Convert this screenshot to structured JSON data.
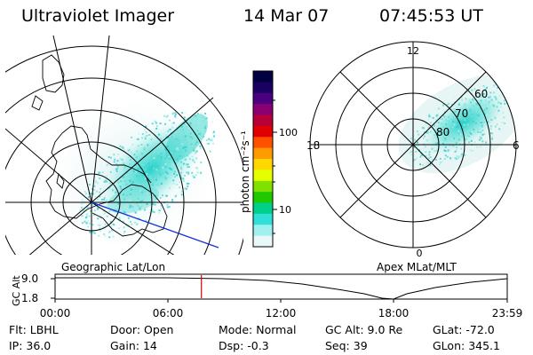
{
  "header": {
    "title": "Ultraviolet Imager",
    "date": "14 Mar 07",
    "time": "07:45:53 UT"
  },
  "colorbar": {
    "label": "photon cm⁻²s⁻¹",
    "ticks": [
      "100",
      "10"
    ],
    "colors": [
      "#000040",
      "#1a0060",
      "#4a0080",
      "#8a0070",
      "#b80038",
      "#e00000",
      "#ff5000",
      "#ff9a00",
      "#ffd800",
      "#e6ff00",
      "#80e000",
      "#20c800",
      "#00d08a",
      "#30e0d8",
      "#a0f0f0",
      "#e8f8f8"
    ]
  },
  "left_map": {
    "caption": "Geographic Lat/Lon",
    "aurora_color": "#40d8d0"
  },
  "right_map": {
    "caption": "Apex MLat/MLT",
    "labels": {
      "top": "12",
      "left": "18",
      "right": "6",
      "bottom": "0"
    },
    "lat_labels": [
      "60",
      "70",
      "80"
    ]
  },
  "altitude_panel": {
    "ylabel": "GC Alt",
    "yticks": [
      "9.0",
      "1.8"
    ],
    "xticks": [
      "00:00",
      "06:00",
      "12:00",
      "18:00",
      "23:59"
    ],
    "marker_color": "#e00000",
    "marker_time_hours": 7.76
  },
  "footer": {
    "row1": [
      {
        "label": "Flt:",
        "value": "LBHL"
      },
      {
        "label": "Door:",
        "value": "Open"
      },
      {
        "label": "Mode:",
        "value": "Normal"
      },
      {
        "label": "GC Alt:",
        "value": "9.0 Re"
      },
      {
        "label": "GLat:",
        "value": "-72.0"
      }
    ],
    "row2": [
      {
        "label": "IP:",
        "value": "36.0"
      },
      {
        "label": "Gain:",
        "value": "14"
      },
      {
        "label": "Dsp:",
        "value": "-0.3"
      },
      {
        "label": "Seq:",
        "value": "39"
      },
      {
        "label": "GLon:",
        "value": "345.1"
      }
    ]
  }
}
